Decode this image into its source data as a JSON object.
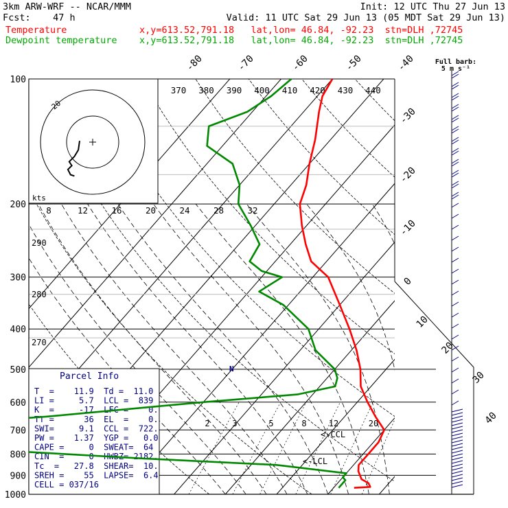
{
  "header": {
    "line1_left": "3km ARW-WRF -- NCAR/MMM",
    "line1_right": "Init: 12 UTC Thu 27 Jun 13",
    "line2_left": "Fcst:    47 h",
    "line2_right": "Valid: 11 UTC Sat 29 Jun 13 (05 MDT Sat 29 Jun 13)",
    "temp_label": "Temperature",
    "temp_info": "x,y=613.52,791.18   lat,lon= 46.84, -92.23  stn=DLH ,72745",
    "dew_label": "Dewpoint temperature",
    "dew_info": "x,y=613.52,791.18   lat,lon= 46.84, -92.23  stn=DLH ,72745"
  },
  "barb_label": {
    "line1": "Full barb:",
    "line2": "5 m s⁻¹"
  },
  "hodograph": {
    "units": "kts",
    "ring_label": "20",
    "path_uv": [
      [
        -10,
        1
      ],
      [
        -11,
        -6
      ],
      [
        -14,
        -11
      ],
      [
        -18,
        -15
      ],
      [
        -16,
        -18
      ],
      [
        -19,
        -21
      ],
      [
        -17,
        -25
      ],
      [
        -14,
        -26
      ]
    ]
  },
  "chart_data": {
    "type": "line",
    "title": "",
    "ylabel": "",
    "pressure_levels": [
      100,
      200,
      300,
      400,
      500,
      600,
      700,
      800,
      900,
      1000
    ],
    "isotherms": [
      -80,
      -70,
      -60,
      -50,
      -40,
      -30,
      -20,
      -10,
      0,
      10,
      20,
      30,
      40
    ],
    "theta_e_labels": [
      370,
      380,
      390,
      400,
      410,
      420,
      430,
      440
    ],
    "theta_labels": [
      290,
      280,
      270
    ],
    "mixing_ratio_labels": [
      2,
      3,
      5,
      8,
      12,
      20
    ],
    "pw_scale_labels": [
      8,
      12,
      16,
      20,
      24,
      28,
      32
    ],
    "ccl_label": "CCL",
    "lcl_label": "LCL",
    "series": [
      {
        "name": "Temperature",
        "color": "#ff0000",
        "points": [
          [
            965,
            14
          ],
          [
            960,
            17
          ],
          [
            940,
            16
          ],
          [
            920,
            14
          ],
          [
            880,
            12
          ],
          [
            850,
            11
          ],
          [
            800,
            11
          ],
          [
            750,
            11
          ],
          [
            700,
            10
          ],
          [
            650,
            6
          ],
          [
            600,
            2
          ],
          [
            550,
            -2
          ],
          [
            500,
            -5
          ],
          [
            450,
            -9
          ],
          [
            400,
            -14
          ],
          [
            350,
            -20
          ],
          [
            300,
            -27
          ],
          [
            275,
            -33
          ],
          [
            250,
            -37
          ],
          [
            225,
            -41
          ],
          [
            200,
            -45
          ],
          [
            180,
            -47
          ],
          [
            160,
            -50
          ],
          [
            140,
            -53
          ],
          [
            120,
            -57
          ],
          [
            110,
            -59
          ],
          [
            100,
            -60
          ]
        ]
      },
      {
        "name": "Dewpoint temperature",
        "color": "#008800",
        "points": [
          [
            965,
            11
          ],
          [
            950,
            11
          ],
          [
            925,
            11
          ],
          [
            910,
            10
          ],
          [
            890,
            10
          ],
          [
            850,
            -5
          ],
          [
            820,
            -32
          ],
          [
            780,
            -65
          ],
          [
            740,
            -110
          ],
          [
            700,
            -92
          ],
          [
            650,
            -58
          ],
          [
            600,
            -30
          ],
          [
            575,
            -13
          ],
          [
            550,
            -7
          ],
          [
            525,
            -8
          ],
          [
            500,
            -10
          ],
          [
            450,
            -17
          ],
          [
            400,
            -22
          ],
          [
            350,
            -31
          ],
          [
            325,
            -38
          ],
          [
            300,
            -36
          ],
          [
            290,
            -41
          ],
          [
            275,
            -45
          ],
          [
            250,
            -46
          ],
          [
            225,
            -51
          ],
          [
            200,
            -57
          ],
          [
            180,
            -60
          ],
          [
            160,
            -65
          ],
          [
            145,
            -73
          ],
          [
            130,
            -76
          ],
          [
            120,
            -71
          ],
          [
            110,
            -69
          ],
          [
            100,
            -68
          ]
        ]
      }
    ]
  },
  "parcel_info": {
    "title": "Parcel Info",
    "rows": [
      "T  =    11.9  Td =  11.0",
      "LI =     5.7  LCL =  839",
      "K  =     -17  LFC =    0.",
      "TT =      36  EL  =    0.",
      "SWI=     9.1  CCL =  722.",
      "PW =    1.37  YGP =   0.0",
      "CAPE =     0  SWEAT=  64",
      "CIN  =     0  HWBZ= 2182.",
      "Tc  =   27.8  SHEAR=  10.",
      "SREH =    55  LAPSE=  6.4",
      "CELL = 037/16"
    ]
  }
}
